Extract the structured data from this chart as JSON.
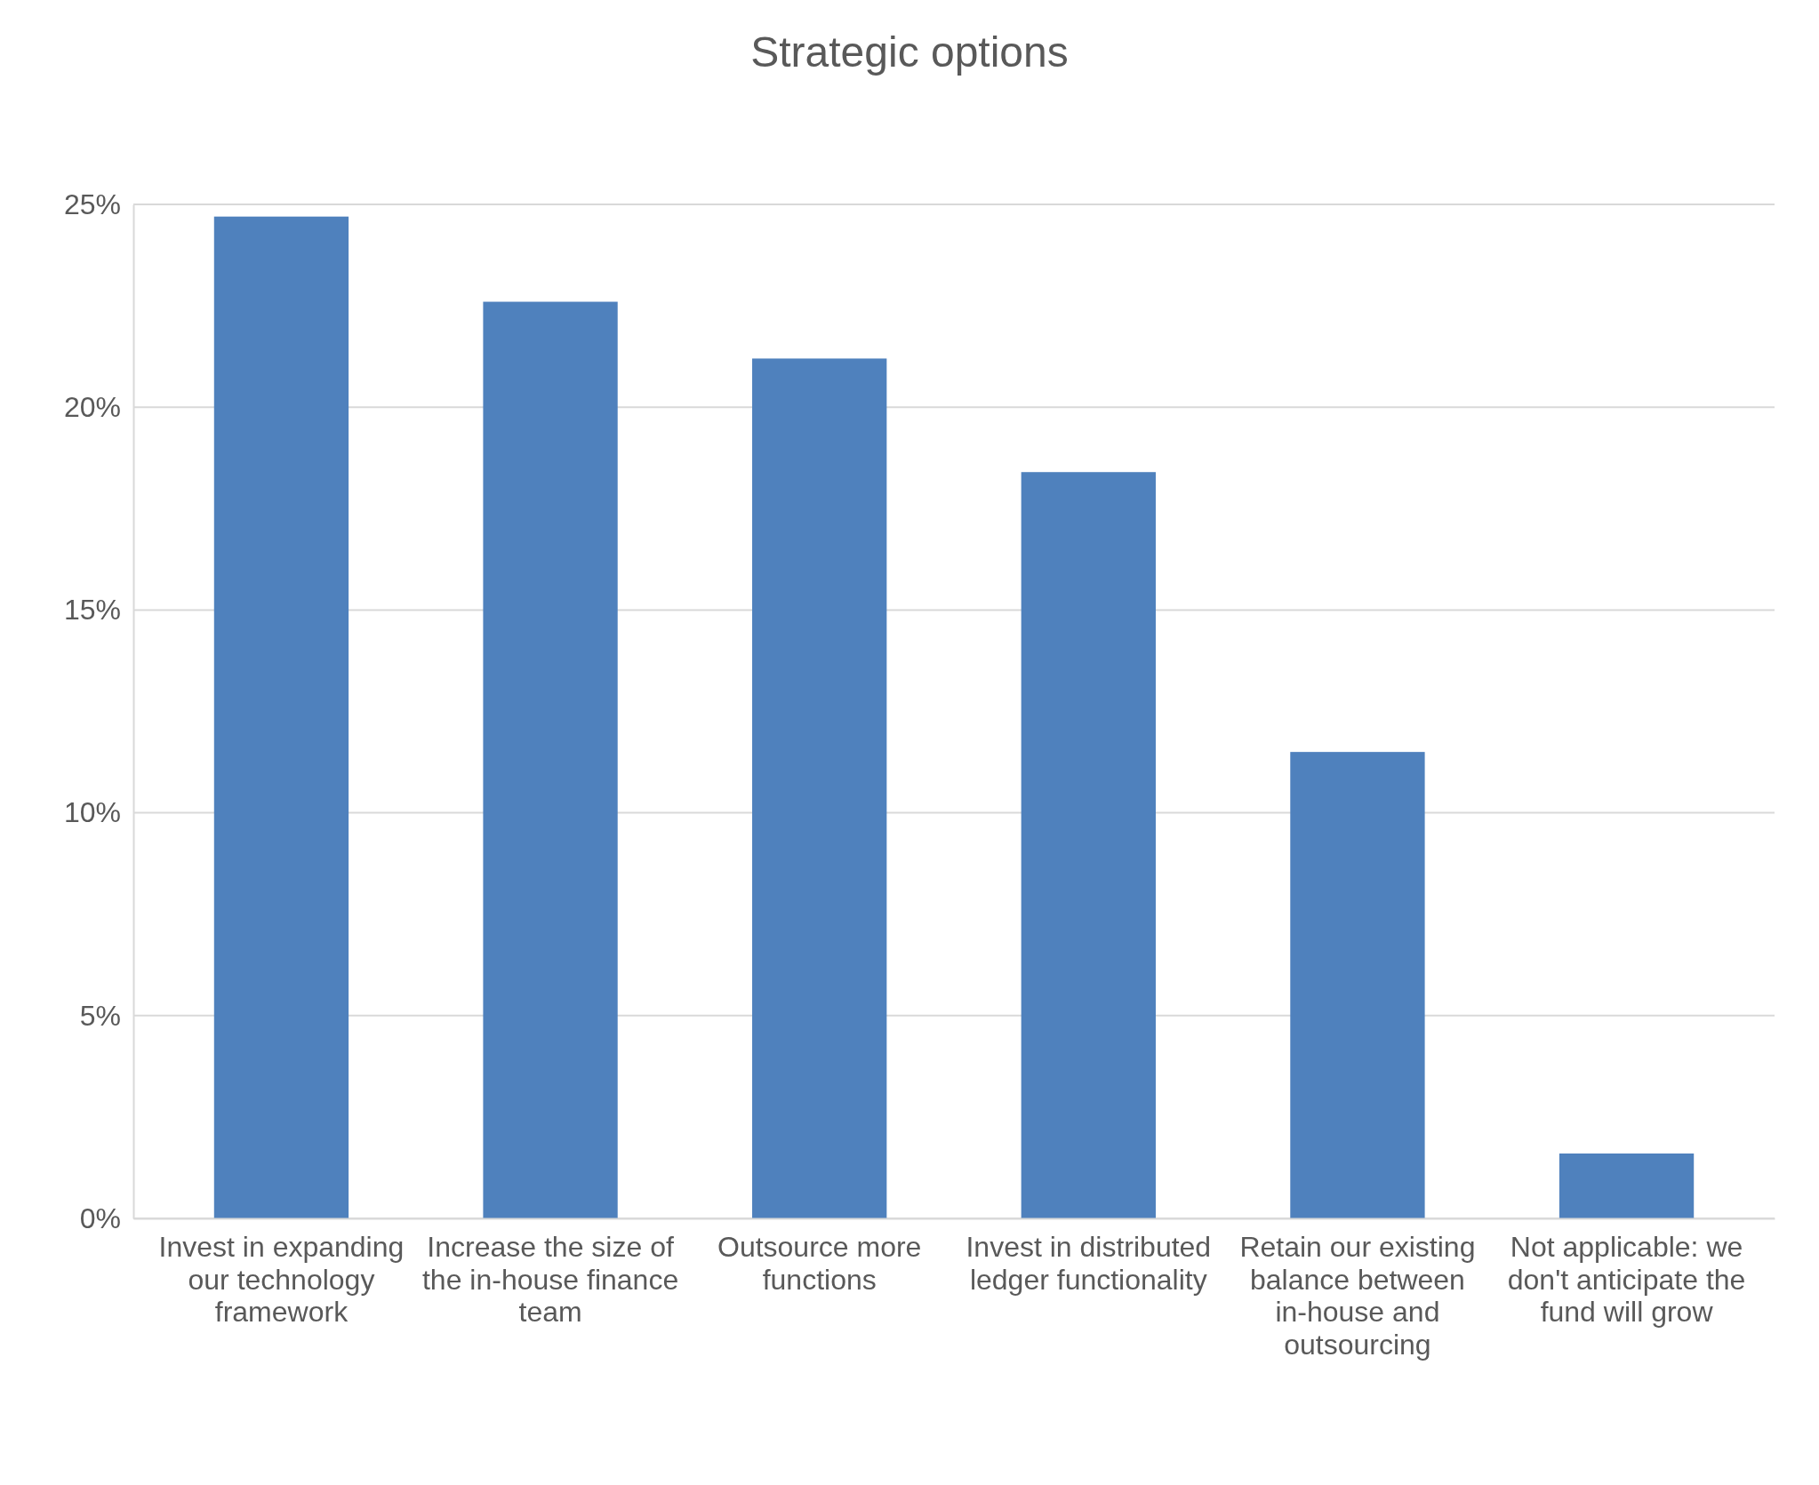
{
  "chart_data": {
    "type": "bar",
    "title": "Strategic options",
    "categories": [
      "Invest in expanding our technology framework",
      "Increase the size of the in-house finance team",
      "Outsource more functions",
      "Invest in distributed ledger functionality",
      "Retain our existing balance between in-house and outsourcing",
      "Not applicable: we don't anticipate the fund will grow"
    ],
    "values": [
      24.7,
      22.6,
      21.2,
      18.4,
      11.5,
      1.6
    ],
    "color": "#4f81bd",
    "ylim": [
      0,
      25
    ],
    "yticks": [
      {
        "value": 0,
        "label": "0%"
      },
      {
        "value": 5,
        "label": "5%"
      },
      {
        "value": 10,
        "label": "10%"
      },
      {
        "value": 15,
        "label": "15%"
      },
      {
        "value": 20,
        "label": "20%"
      },
      {
        "value": 25,
        "label": "25%"
      }
    ],
    "grid": true
  }
}
